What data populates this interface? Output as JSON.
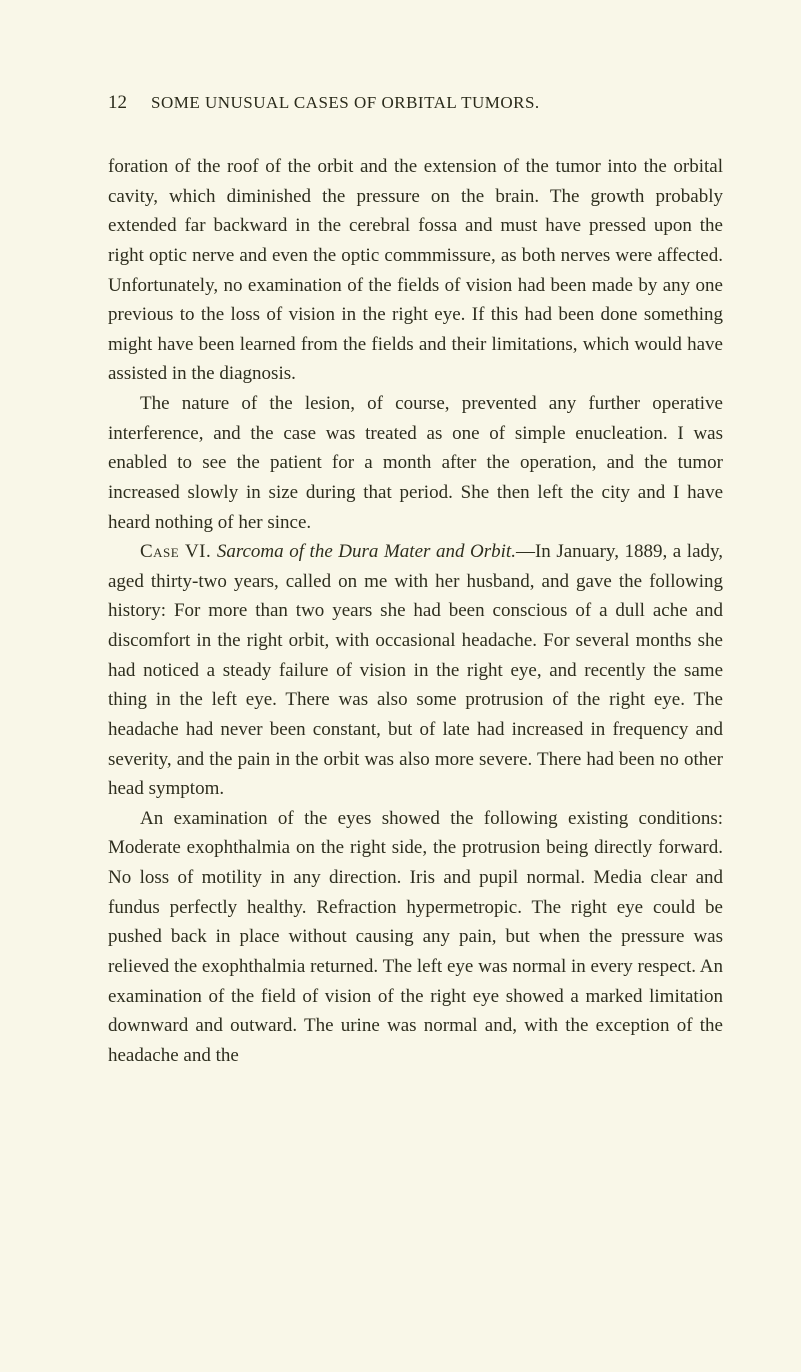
{
  "header": {
    "page_number": "12",
    "running_title": "SOME UNUSUAL CASES OF ORBITAL TUMORS."
  },
  "paragraphs": {
    "p1": "foration of the roof of the orbit and the extension of the tumor into the orbital cavity, which diminished the pressure on the brain. The growth probably extended far backward in the cerebral fossa and must have pressed upon the right optic nerve and even the optic commmissure, as both nerves were affected. Unfortunately, no examination of the fields of vision had been made by any one previous to the loss of vision in the right eye. If this had been done something might have been learned from the fields and their limitations, which would have assisted in the diagnosis.",
    "p2": "The nature of the lesion, of course, prevented any further operative interference, and the case was treated as one of simple enucleation. I was enabled to see the patient for a month after the operation, and the tumor increased slowly in size during that period. She then left the city and I have heard nothing of her since.",
    "p3_case": "Case VI.",
    "p3_title": "Sarcoma of the Dura Mater and Orbit.",
    "p3_body": "—In January, 1889, a lady, aged thirty-two years, called on me with her husband, and gave the following history: For more than two years she had been conscious of a dull ache and discomfort in the right orbit, with occasional headache. For several months she had noticed a steady failure of vision in the right eye, and recently the same thing in the left eye. There was also some protrusion of the right eye. The headache had never been constant, but of late had increased in frequency and severity, and the pain in the orbit was also more severe. There had been no other head symptom.",
    "p4": "An examination of the eyes showed the following existing conditions: Moderate exophthalmia on the right side, the protrusion being directly forward. No loss of motility in any direction. Iris and pupil normal. Media clear and fundus perfectly healthy. Refraction hypermetropic. The right eye could be pushed back in place without causing any pain, but when the pressure was relieved the exophthalmia returned. The left eye was normal in every respect. An examination of the field of vision of the right eye showed a marked limitation downward and outward. The urine was normal and, with the exception of the headache and the"
  },
  "colors": {
    "background": "#f9f7e8",
    "text": "#2e2e1e"
  },
  "typography": {
    "body_fontsize": 19,
    "line_height": 1.56,
    "header_fontsize": 17,
    "pagenum_fontsize": 19
  }
}
